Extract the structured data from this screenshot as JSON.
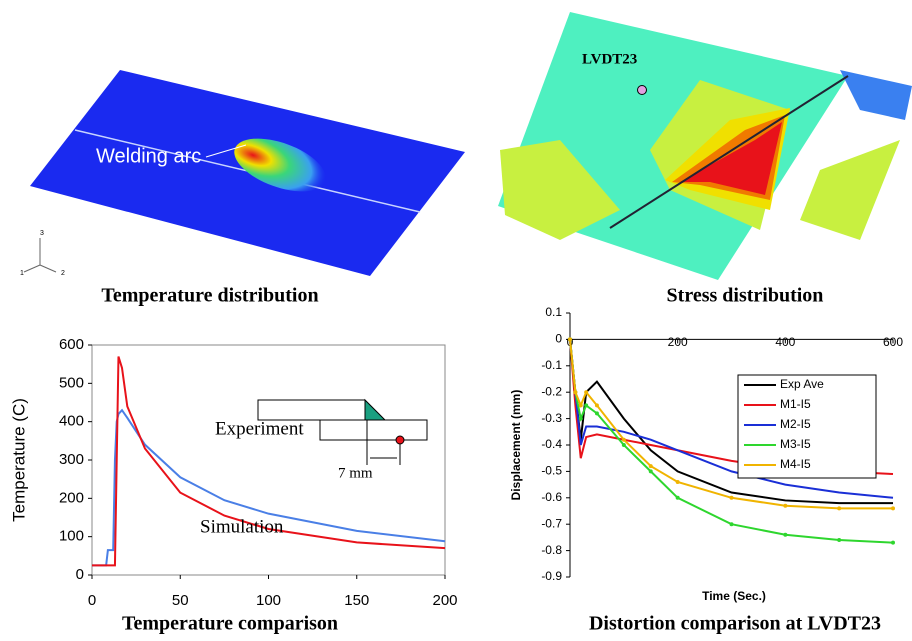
{
  "images": [
    {
      "caption": "Temperature distribution",
      "labels": [
        "Welding arc",
        "1",
        "2",
        "3"
      ]
    },
    {
      "caption": "Stress distribution",
      "labels": [
        "LVDT23"
      ]
    }
  ],
  "chart_data": [
    {
      "type": "line",
      "title": "Temperature comparison",
      "y_label": "Temperature (C)",
      "x": [
        0,
        8,
        9,
        12,
        13,
        14,
        15,
        17,
        20,
        30,
        50,
        75,
        100,
        150,
        200
      ],
      "series": [
        {
          "name": "Experiment",
          "color": "#4a7fe6",
          "values": [
            25,
            25,
            65,
            65,
            300,
            400,
            420,
            430,
            410,
            340,
            255,
            195,
            160,
            115,
            88
          ]
        },
        {
          "name": "Simulation",
          "color": "#e8121a",
          "values": [
            25,
            25,
            25,
            25,
            25,
            300,
            570,
            540,
            440,
            330,
            215,
            155,
            120,
            85,
            70
          ]
        }
      ],
      "annotations": [
        "7 mm"
      ],
      "xlim": [
        0,
        200
      ],
      "xticks": [
        0,
        50,
        100,
        150,
        200
      ],
      "ylim": [
        0,
        600
      ],
      "yticks": [
        0,
        100,
        200,
        300,
        400,
        500,
        600
      ]
    },
    {
      "type": "line",
      "title": "Distortion comparison at LVDT23",
      "x_label": "Time (Sec.)",
      "y_label": "Displacement (mm)",
      "x": [
        0,
        10,
        20,
        30,
        50,
        100,
        150,
        200,
        300,
        400,
        500,
        600
      ],
      "series": [
        {
          "name": "Exp Ave",
          "color": "#000000",
          "values": [
            0,
            -0.2,
            -0.38,
            -0.2,
            -0.16,
            -0.3,
            -0.42,
            -0.5,
            -0.58,
            -0.61,
            -0.62,
            -0.62
          ]
        },
        {
          "name": "M1-I5",
          "color": "#e8121a",
          "values": [
            0,
            -0.25,
            -0.45,
            -0.37,
            -0.36,
            -0.38,
            -0.4,
            -0.42,
            -0.46,
            -0.49,
            -0.5,
            -0.51
          ]
        },
        {
          "name": "M2-I5",
          "color": "#1a2fd6",
          "values": [
            0,
            -0.2,
            -0.4,
            -0.33,
            -0.33,
            -0.35,
            -0.38,
            -0.42,
            -0.5,
            -0.55,
            -0.58,
            -0.6
          ]
        },
        {
          "name": "M3-I5",
          "color": "#2ed62e",
          "markers": true,
          "values": [
            0,
            -0.2,
            -0.3,
            -0.25,
            -0.28,
            -0.4,
            -0.5,
            -0.6,
            -0.7,
            -0.74,
            -0.76,
            -0.77
          ]
        },
        {
          "name": "M4-I5",
          "color": "#f0b400",
          "markers": true,
          "values": [
            0,
            -0.2,
            -0.25,
            -0.2,
            -0.25,
            -0.38,
            -0.48,
            -0.54,
            -0.6,
            -0.63,
            -0.64,
            -0.64
          ]
        }
      ],
      "legend": "upper right",
      "xlim": [
        0,
        600
      ],
      "xticks": [
        0,
        200,
        400,
        600
      ],
      "ylim": [
        -0.9,
        0.1
      ],
      "yticks": [
        0.1,
        0,
        -0.1,
        -0.2,
        -0.3,
        -0.4,
        -0.5,
        -0.6,
        -0.7,
        -0.8,
        -0.9
      ]
    }
  ]
}
